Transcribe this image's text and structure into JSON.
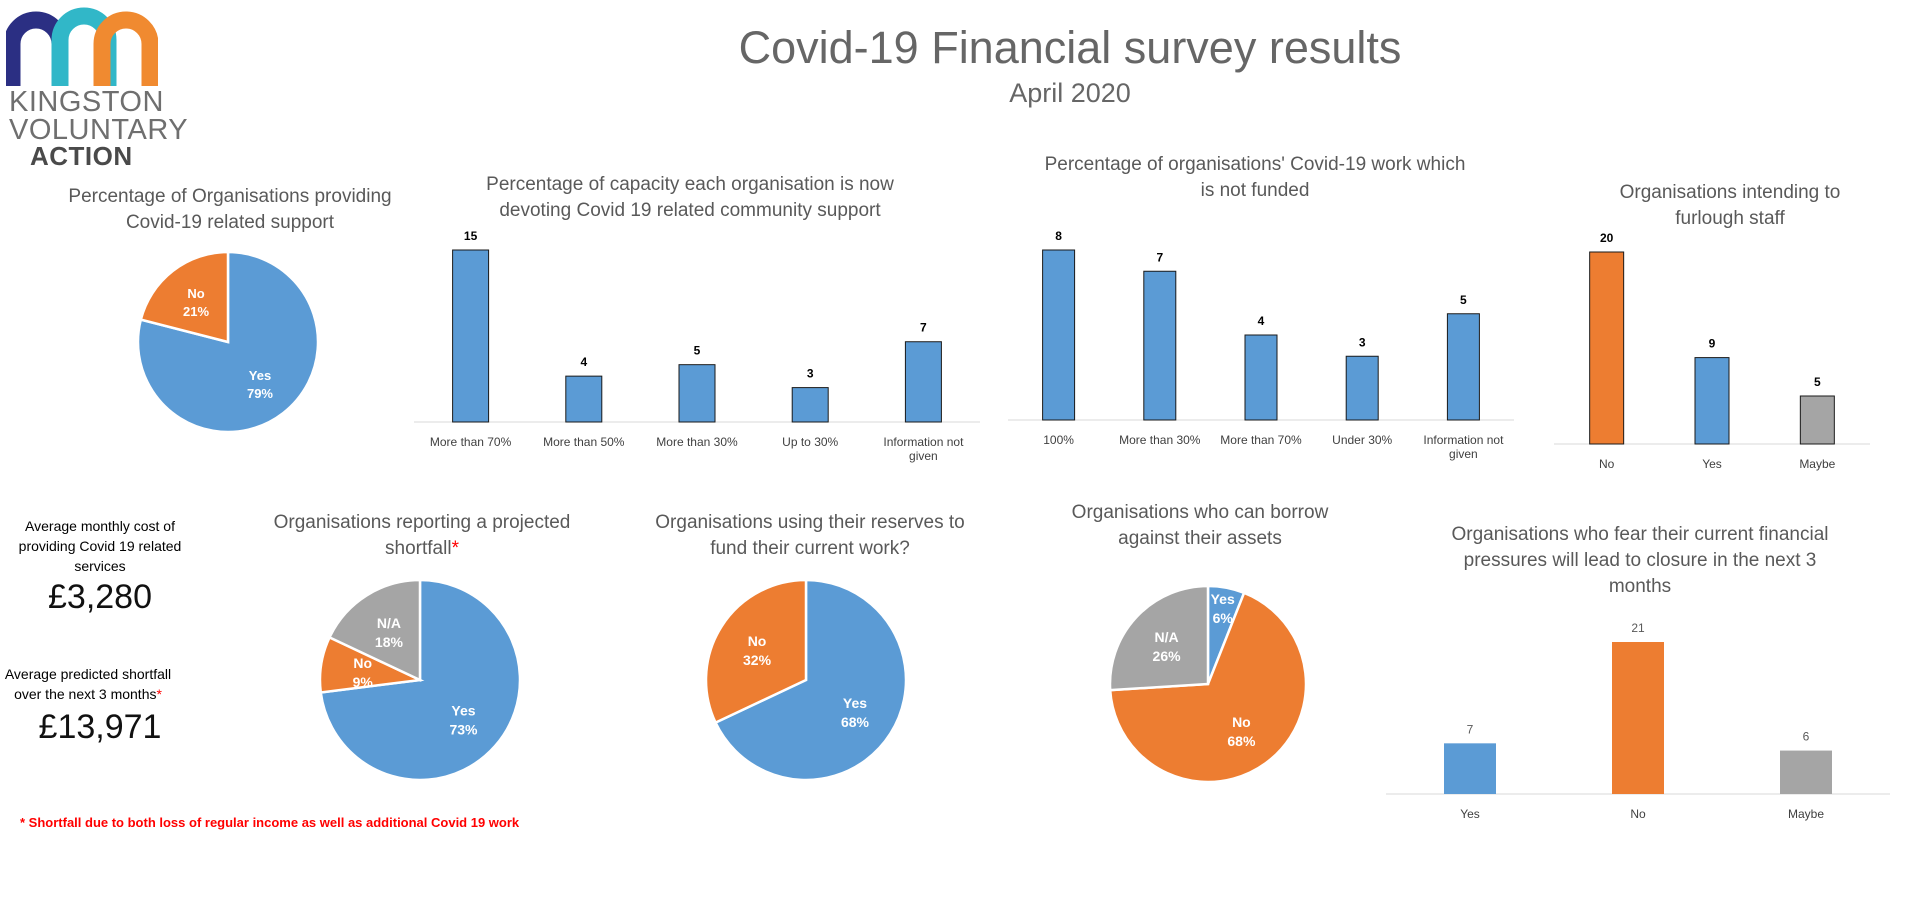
{
  "header": {
    "title": "Covid-19 Financial survey results",
    "subtitle": "April 2020",
    "logo": {
      "line1": "KINGSTON",
      "line2": "VOLUNTARY",
      "line3": "ACTION",
      "colors": [
        "#2b2f83",
        "#31b7c8",
        "#f08a30"
      ]
    }
  },
  "colors": {
    "blue": "#5b9bd5",
    "orange": "#ed7d31",
    "grey": "#a5a5a5",
    "red": "#ff0000"
  },
  "stats": {
    "monthly_cost_label": "Average monthly cost of providing Covid 19 related services",
    "monthly_cost_value": "£3,280",
    "shortfall_label": "Average predicted shortfall over the next 3 months",
    "shortfall_asterisk": "*",
    "shortfall_value": "£13,971"
  },
  "footnote": "* Shortfall due to both loss of regular income as well as additional Covid 19 work",
  "chart_data": [
    {
      "id": "support",
      "type": "pie",
      "title": "Percentage of Organisations providing Covid-19 related support",
      "slices": [
        {
          "label": "Yes",
          "value": 79,
          "text": "79%",
          "color": "#5b9bd5"
        },
        {
          "label": "No",
          "value": 21,
          "text": "21%",
          "color": "#ed7d31"
        }
      ]
    },
    {
      "id": "capacity",
      "type": "bar",
      "title": "Percentage of capacity each organisation is now devoting Covid 19 related community support",
      "categories": [
        "More than 70%",
        "More than 50%",
        "More than 30%",
        "Up to 30%",
        "Information not given"
      ],
      "values": [
        15,
        4,
        5,
        3,
        7
      ],
      "colors": [
        "#5b9bd5",
        "#5b9bd5",
        "#5b9bd5",
        "#5b9bd5",
        "#5b9bd5"
      ]
    },
    {
      "id": "notfunded",
      "type": "bar",
      "title": "Percentage of organisations' Covid-19 work which is not funded",
      "categories": [
        "100%",
        "More than 30%",
        "More than 70%",
        "Under 30%",
        "Information not given"
      ],
      "values": [
        8,
        7,
        4,
        3,
        5
      ],
      "colors": [
        "#5b9bd5",
        "#5b9bd5",
        "#5b9bd5",
        "#5b9bd5",
        "#5b9bd5"
      ]
    },
    {
      "id": "furlough",
      "type": "bar",
      "title": "Organisations intending to furlough staff",
      "categories": [
        "No",
        "Yes",
        "Maybe"
      ],
      "values": [
        20,
        9,
        5
      ],
      "colors": [
        "#ed7d31",
        "#5b9bd5",
        "#a5a5a5"
      ]
    },
    {
      "id": "shortfall",
      "type": "pie",
      "title": "Organisations reporting a projected shortfall",
      "title_asterisk": "*",
      "slices": [
        {
          "label": "Yes",
          "value": 73,
          "text": "73%",
          "color": "#5b9bd5"
        },
        {
          "label": "No",
          "value": 9,
          "text": "9%",
          "color": "#ed7d31"
        },
        {
          "label": "N/A",
          "value": 18,
          "text": "18%",
          "color": "#a5a5a5"
        }
      ]
    },
    {
      "id": "reserves",
      "type": "pie",
      "title": "Organisations using their reserves to fund their current work?",
      "slices": [
        {
          "label": "Yes",
          "value": 68,
          "text": "68%",
          "color": "#5b9bd5"
        },
        {
          "label": "No",
          "value": 32,
          "text": "32%",
          "color": "#ed7d31"
        }
      ]
    },
    {
      "id": "borrow",
      "type": "pie",
      "title": "Organisations who can borrow against their assets",
      "slices": [
        {
          "label": "Yes",
          "value": 6,
          "text": "6%",
          "color": "#5b9bd5"
        },
        {
          "label": "No",
          "value": 68,
          "text": "68%",
          "color": "#ed7d31"
        },
        {
          "label": "N/A",
          "value": 26,
          "text": "26%",
          "color": "#a5a5a5"
        }
      ]
    },
    {
      "id": "closure",
      "type": "bar",
      "title": "Organisations who fear their current financial pressures will lead to closure in the next 3 months",
      "categories": [
        "Yes",
        "No",
        "Maybe"
      ],
      "values": [
        7,
        21,
        6
      ],
      "colors": [
        "#5b9bd5",
        "#ed7d31",
        "#a5a5a5"
      ]
    }
  ]
}
